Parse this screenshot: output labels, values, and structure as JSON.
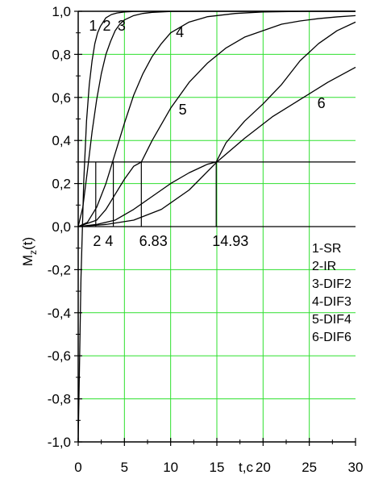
{
  "chart_data": {
    "type": "line",
    "title": "",
    "xlabel": "t,c",
    "ylabel_main": "M",
    "ylabel_sub": "z",
    "ylabel_tail": "(t)",
    "xlim": [
      0,
      30
    ],
    "ylim": [
      -1.0,
      1.0
    ],
    "grid": true,
    "grid_color": "#2ee02e",
    "line_color": "#000000",
    "x_ticks": [
      {
        "value": 0,
        "label": "0"
      },
      {
        "value": 5,
        "label": "5"
      },
      {
        "value": 10,
        "label": "10"
      },
      {
        "value": 15,
        "label": "15"
      },
      {
        "value": 20,
        "label": "20"
      },
      {
        "value": 25,
        "label": "25"
      },
      {
        "value": 30,
        "label": "30"
      }
    ],
    "y_ticks": [
      {
        "value": 1.0,
        "label": "1,0"
      },
      {
        "value": 0.8,
        "label": "0,8"
      },
      {
        "value": 0.6,
        "label": "0,6"
      },
      {
        "value": 0.4,
        "label": "0,4"
      },
      {
        "value": 0.2,
        "label": "0,2"
      },
      {
        "value": 0.0,
        "label": "0,0"
      },
      {
        "value": -0.2,
        "label": "-0,2"
      },
      {
        "value": -0.4,
        "label": "-0,4"
      },
      {
        "value": -0.6,
        "label": "-0,6"
      },
      {
        "value": -0.8,
        "label": "-0,8"
      },
      {
        "value": -1.0,
        "label": "-1,0"
      }
    ],
    "series": [
      {
        "name": "1-SR",
        "label": "1",
        "label_at": [
          1.6,
          0.91
        ],
        "x": [
          0,
          0.3,
          0.6,
          0.9,
          1.2,
          1.5,
          1.8,
          2.1,
          2.4,
          2.7,
          3.0,
          3.6,
          4.2,
          5.0,
          6.0,
          8.0,
          10.0,
          14.0,
          20.0,
          30.0
        ],
        "y": [
          -1.0,
          -0.24,
          0.21,
          0.49,
          0.66,
          0.77,
          0.85,
          0.9,
          0.93,
          0.95,
          0.97,
          0.985,
          0.992,
          0.997,
          0.999,
          1.0,
          1.0,
          1.0,
          1.0,
          1.0
        ]
      },
      {
        "name": "2-IR",
        "label": "2",
        "label_at": [
          3.1,
          0.91
        ],
        "x": [
          0,
          0.5,
          1.0,
          1.5,
          2.0,
          2.5,
          3.0,
          3.5,
          4.0,
          4.5,
          5.0,
          6.0,
          7.0,
          8.0,
          10.0,
          14.0,
          20.0,
          30.0
        ],
        "y": [
          0,
          0.09,
          0.26,
          0.44,
          0.59,
          0.71,
          0.8,
          0.86,
          0.91,
          0.94,
          0.96,
          0.98,
          0.99,
          0.995,
          0.999,
          1.0,
          1.0,
          1.0
        ]
      },
      {
        "name": "3-DIF2",
        "label": "3",
        "label_at": [
          4.7,
          0.91
        ],
        "x": [
          0,
          1.0,
          2.0,
          3.0,
          3.5,
          4.0,
          5.0,
          6.0,
          7.0,
          8.0,
          9.0,
          10.0,
          12.0,
          14.0,
          17.0,
          20.0,
          25.0,
          30.0
        ],
        "y": [
          0,
          0.02,
          0.09,
          0.2,
          0.27,
          0.34,
          0.48,
          0.61,
          0.71,
          0.79,
          0.85,
          0.9,
          0.95,
          0.975,
          0.99,
          0.997,
          1.0,
          1.0
        ]
      },
      {
        "name": "4-DIF3",
        "label": "4",
        "label_at": [
          11.0,
          0.88
        ],
        "x": [
          0,
          2.0,
          3.0,
          4.0,
          5.0,
          6.0,
          6.83,
          8.0,
          10.0,
          12.0,
          14.0,
          16.0,
          18.0,
          20.0,
          22.0,
          24.0,
          26.0,
          28.0,
          30.0
        ],
        "y": [
          0,
          0.03,
          0.08,
          0.15,
          0.22,
          0.28,
          0.3,
          0.4,
          0.55,
          0.67,
          0.76,
          0.83,
          0.88,
          0.91,
          0.94,
          0.955,
          0.966,
          0.974,
          0.98
        ]
      },
      {
        "name": "5-DIF4",
        "label": "5",
        "label_at": [
          11.3,
          0.52
        ],
        "x": [
          0,
          2.0,
          4.0,
          6.0,
          8.0,
          10.0,
          12.0,
          14.0,
          14.93,
          16.0,
          18.0,
          20.0,
          22.0,
          24.0,
          26.0,
          28.0,
          30.0
        ],
        "y": [
          0,
          0.01,
          0.03,
          0.08,
          0.14,
          0.2,
          0.25,
          0.29,
          0.3,
          0.39,
          0.49,
          0.57,
          0.66,
          0.77,
          0.85,
          0.91,
          0.95
        ]
      },
      {
        "name": "6-DIF6",
        "label": "6",
        "label_at": [
          26.3,
          0.55
        ],
        "x": [
          0,
          3.0,
          6.0,
          9.0,
          12.0,
          15.0,
          18.0,
          21.0,
          24.0,
          27.0,
          30.0
        ],
        "y": [
          0,
          0.01,
          0.03,
          0.08,
          0.17,
          0.3,
          0.41,
          0.51,
          0.59,
          0.67,
          0.74
        ]
      }
    ],
    "threshold": {
      "y": 0.3,
      "x_range": [
        0,
        30
      ]
    },
    "crossings": [
      {
        "x": 1.9,
        "label": ""
      },
      {
        "x": 3.8,
        "label": "2 4"
      },
      {
        "x": 6.83,
        "label": "6.83"
      },
      {
        "x": 14.93,
        "label": "14.93"
      }
    ],
    "crossing_labels": [
      {
        "text": "2 4",
        "at": [
          1.6,
          -0.09
        ]
      },
      {
        "text": "6.83",
        "at": [
          6.6,
          -0.09
        ]
      },
      {
        "text": "14.93",
        "at": [
          14.5,
          -0.09
        ]
      }
    ],
    "legend": [
      "1-SR",
      "2-IR",
      "3-DIF2",
      "4-DIF3",
      "5-DIF4",
      "6-DIF6"
    ],
    "legend_placement": "right-middle"
  }
}
